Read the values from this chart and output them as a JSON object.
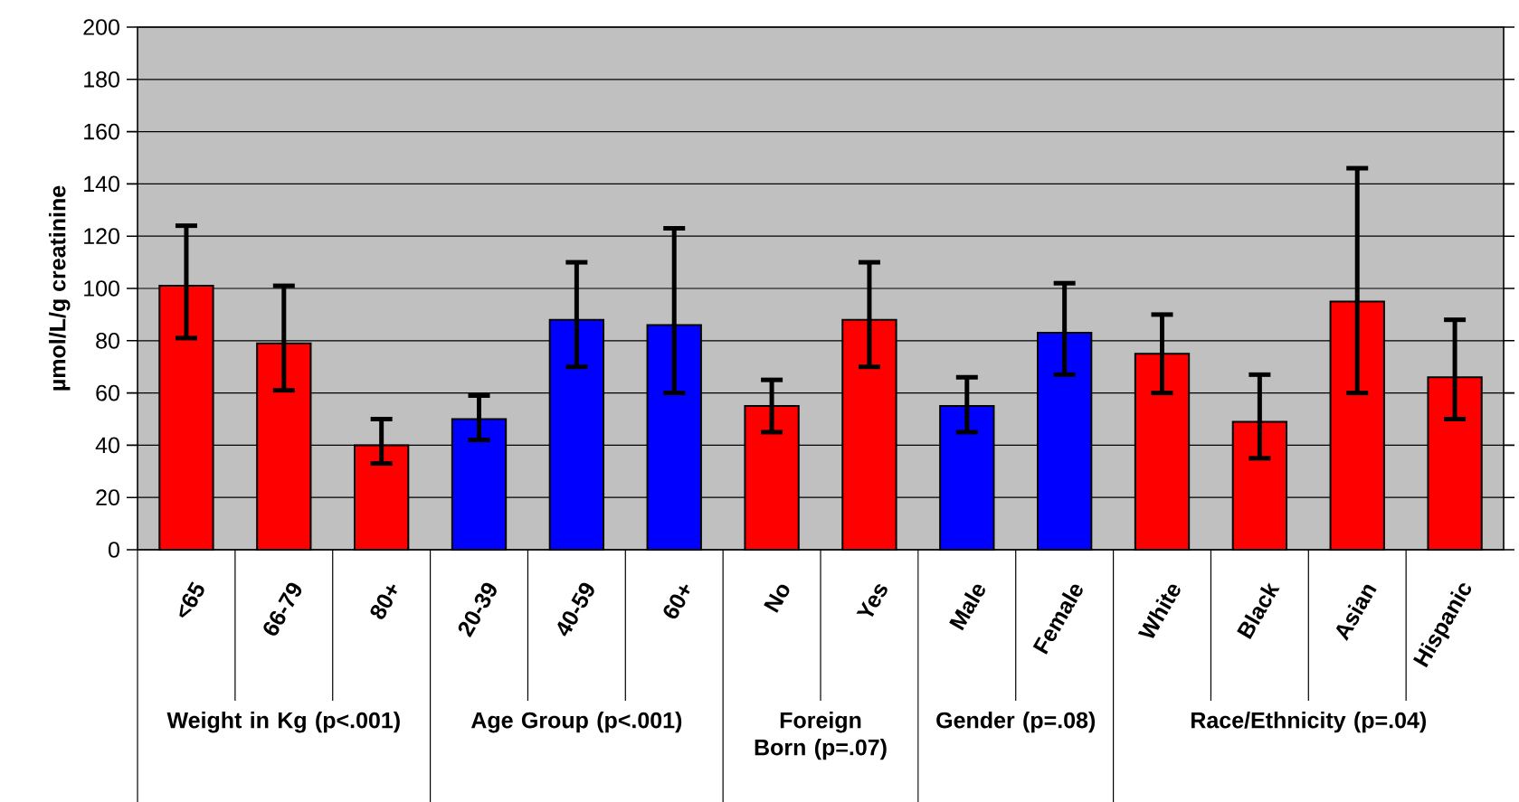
{
  "chart_data": {
    "type": "bar",
    "ylabel": "µmol/L/g creatinine",
    "categories": [
      "<65",
      "66-79",
      "80+",
      "20-39",
      "40-59",
      "60+",
      "No",
      "Yes",
      "Male",
      "Female",
      "White",
      "Black",
      "Asian",
      "Hispanic"
    ],
    "values": [
      101,
      79,
      40,
      50,
      88,
      86,
      55,
      88,
      55,
      83,
      75,
      49,
      95,
      66
    ],
    "colors": [
      "#ff0000",
      "#ff0000",
      "#ff0000",
      "#0000ff",
      "#0000ff",
      "#0000ff",
      "#ff0000",
      "#ff0000",
      "#0000ff",
      "#0000ff",
      "#ff0000",
      "#ff0000",
      "#ff0000",
      "#ff0000"
    ],
    "errors": [
      [
        81,
        124
      ],
      [
        61,
        101
      ],
      [
        33,
        50
      ],
      [
        42,
        59
      ],
      [
        70,
        110
      ],
      [
        60,
        123
      ],
      [
        45,
        65
      ],
      [
        70,
        110
      ],
      [
        45,
        66
      ],
      [
        67,
        102
      ],
      [
        60,
        90
      ],
      [
        35,
        67
      ],
      [
        60,
        146
      ],
      [
        50,
        88
      ]
    ],
    "ylim": [
      0,
      200
    ],
    "yticks": [
      0,
      20,
      40,
      60,
      80,
      100,
      120,
      140,
      160,
      180,
      200
    ],
    "grid": "y",
    "annotations": [
      "Weight in Kg (p<.001)",
      "Age Group (p<.001)",
      "Foreign Born (p=.07)",
      "Gender (p=.08)",
      "Race/Ethnicity (p=.04)"
    ]
  }
}
